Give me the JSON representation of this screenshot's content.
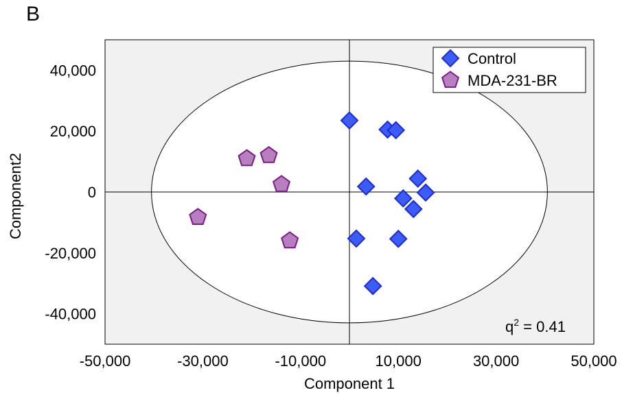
{
  "panel_label": "B",
  "chart_data": {
    "type": "scatter",
    "xlabel": "Component 1",
    "ylabel": "Component2",
    "xlim": [
      -50000,
      50000
    ],
    "ylim": [
      -50000,
      50000
    ],
    "x_ticks": [
      -50000,
      -30000,
      -10000,
      10000,
      30000,
      50000
    ],
    "x_tick_labels": [
      "-50,000",
      "-30,000",
      "-10,000",
      "10,000",
      "30,000",
      "50,000"
    ],
    "y_ticks": [
      40000,
      20000,
      0,
      -20000,
      -40000
    ],
    "y_tick_labels": [
      "40,000",
      "20,000",
      "0",
      "-20,000",
      "-40,000"
    ],
    "legend_position": "top-right",
    "annotation": {
      "base": "q",
      "superscript": "2",
      "suffix": " = 0.41"
    },
    "ellipse": {
      "cx": 0,
      "cy": 0,
      "rx": 40500,
      "ry": 43000
    },
    "series": [
      {
        "name": "Control",
        "marker": "diamond",
        "color": "#3d5cf5",
        "edge": "#1a2bd6",
        "points": [
          [
            0,
            23500
          ],
          [
            7800,
            20500
          ],
          [
            9500,
            20300
          ],
          [
            14000,
            4400
          ],
          [
            15600,
            -200
          ],
          [
            11000,
            -2100
          ],
          [
            13100,
            -5600
          ],
          [
            3400,
            1800
          ],
          [
            1400,
            -15300
          ],
          [
            10000,
            -15400
          ],
          [
            4800,
            -30900
          ]
        ]
      },
      {
        "name": "MDA-231-BR",
        "marker": "pentagon",
        "color": "#b77fc0",
        "edge": "#7a1a86",
        "points": [
          [
            -21000,
            11000
          ],
          [
            -16500,
            12000
          ],
          [
            -13900,
            2500
          ],
          [
            -12200,
            -16000
          ],
          [
            -31000,
            -8300
          ]
        ]
      }
    ]
  }
}
